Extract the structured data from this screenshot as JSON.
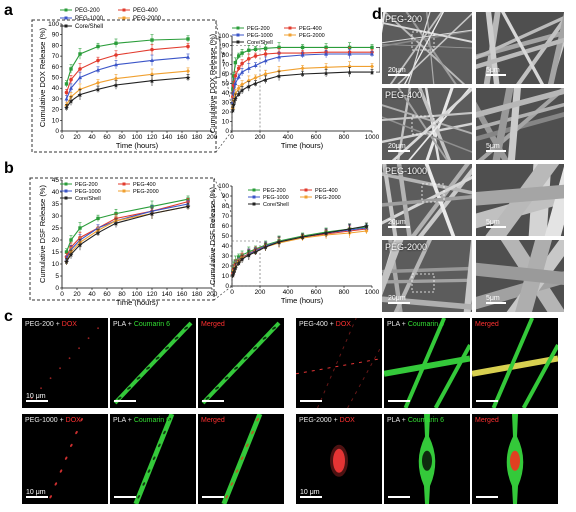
{
  "panels": {
    "a": "a",
    "b": "b",
    "c": "c",
    "d": "d"
  },
  "colors": {
    "PEG-200": "#2a9d3a",
    "PEG-400": "#e23b2e",
    "PEG-1000": "#3b55c8",
    "PEG-2000": "#f0a030",
    "Core/Shell": "#222222"
  },
  "chart_data": [
    {
      "id": "a-inset",
      "type": "line",
      "xlabel": "Time (hours)",
      "ylabel": "Cumulative DOX Release (%)",
      "xlim": [
        0,
        200
      ],
      "ylim": [
        0,
        100
      ],
      "xticks": [
        "0",
        "20",
        "40",
        "60",
        "80",
        "100",
        "120",
        "140",
        "160",
        "180",
        "200"
      ],
      "yticks": [
        "0",
        "10",
        "20",
        "30",
        "40",
        "50",
        "60",
        "70",
        "80",
        "90",
        "100"
      ],
      "significance": [
        "*",
        "*"
      ],
      "x": [
        6,
        12,
        24,
        48,
        72,
        120,
        168
      ],
      "series": [
        {
          "name": "PEG-200",
          "values": [
            44,
            58,
            72,
            79,
            82,
            85,
            86
          ]
        },
        {
          "name": "PEG-400",
          "values": [
            36,
            48,
            58,
            66,
            71,
            76,
            79
          ]
        },
        {
          "name": "PEG-1000",
          "values": [
            30,
            40,
            50,
            57,
            62,
            66,
            69
          ]
        },
        {
          "name": "PEG-2000",
          "values": [
            24,
            32,
            39,
            45,
            49,
            53,
            56
          ]
        },
        {
          "name": "Core/Shell",
          "values": [
            22,
            28,
            34,
            39,
            43,
            47,
            50
          ]
        }
      ]
    },
    {
      "id": "a-full",
      "type": "line",
      "xlabel": "Time (hours)",
      "ylabel": "Cumulative DOX Release (%)",
      "xlim": [
        0,
        1000
      ],
      "ylim": [
        0,
        100
      ],
      "xticks": [
        "0",
        "200",
        "400",
        "600",
        "800",
        "1000"
      ],
      "yticks": [
        "0",
        "10",
        "20",
        "30",
        "40",
        "50",
        "60",
        "70",
        "80",
        "90",
        "100"
      ],
      "significance": [
        "*",
        "*"
      ],
      "x": [
        6,
        12,
        24,
        48,
        72,
        120,
        168,
        240,
        336,
        504,
        672,
        840,
        1000
      ],
      "series": [
        {
          "name": "PEG-200",
          "values": [
            44,
            58,
            72,
            79,
            82,
            85,
            86,
            87,
            88,
            88,
            88,
            88,
            88
          ]
        },
        {
          "name": "PEG-400",
          "values": [
            36,
            48,
            58,
            66,
            71,
            76,
            79,
            81,
            82,
            82,
            83,
            83,
            83
          ]
        },
        {
          "name": "PEG-1000",
          "values": [
            30,
            40,
            50,
            57,
            62,
            66,
            69,
            74,
            78,
            80,
            81,
            81,
            81
          ]
        },
        {
          "name": "PEG-2000",
          "values": [
            24,
            32,
            39,
            45,
            49,
            53,
            56,
            60,
            63,
            66,
            67,
            68,
            68
          ]
        },
        {
          "name": "Core/Shell",
          "values": [
            22,
            28,
            34,
            39,
            43,
            47,
            50,
            54,
            58,
            60,
            61,
            62,
            62
          ]
        }
      ]
    },
    {
      "id": "b-inset",
      "type": "line",
      "xlabel": "Time (hours)",
      "ylabel": "Cumulative DSF Release (%)",
      "xlim": [
        0,
        200
      ],
      "ylim": [
        0,
        45
      ],
      "xticks": [
        "0",
        "20",
        "40",
        "60",
        "80",
        "100",
        "120",
        "140",
        "160",
        "180",
        "200"
      ],
      "yticks": [
        "0",
        "5",
        "10",
        "15",
        "20",
        "25",
        "30",
        "35",
        "40",
        "45"
      ],
      "x": [
        6,
        12,
        24,
        48,
        72,
        120,
        168
      ],
      "series": [
        {
          "name": "PEG-200",
          "values": [
            15,
            20,
            25,
            29,
            31,
            34,
            37
          ]
        },
        {
          "name": "PEG-400",
          "values": [
            13,
            17,
            21,
            25,
            29,
            32,
            36
          ]
        },
        {
          "name": "PEG-1000",
          "values": [
            12,
            16,
            20,
            25,
            28,
            32,
            35
          ]
        },
        {
          "name": "PEG-2000",
          "values": [
            11,
            15,
            19,
            24,
            28,
            31,
            34
          ]
        },
        {
          "name": "Core/Shell",
          "values": [
            11,
            14,
            18,
            23,
            27,
            31,
            34
          ]
        }
      ]
    },
    {
      "id": "b-full",
      "type": "line",
      "xlabel": "Time (hours)",
      "ylabel": "Cumulative DSF Release (%)",
      "xlim": [
        0,
        1000
      ],
      "ylim": [
        0,
        100
      ],
      "xticks": [
        "0",
        "200",
        "400",
        "600",
        "800",
        "1000"
      ],
      "yticks": [
        "0",
        "10",
        "20",
        "30",
        "40",
        "50",
        "60",
        "70",
        "80",
        "90",
        "100"
      ],
      "x": [
        6,
        12,
        24,
        48,
        72,
        120,
        168,
        240,
        336,
        504,
        672,
        840,
        960
      ],
      "series": [
        {
          "name": "PEG-200",
          "values": [
            15,
            20,
            25,
            29,
            31,
            34,
            37,
            41,
            45,
            50,
            54,
            57,
            59
          ]
        },
        {
          "name": "PEG-400",
          "values": [
            13,
            17,
            21,
            25,
            29,
            32,
            36,
            40,
            44,
            49,
            52,
            55,
            57
          ]
        },
        {
          "name": "PEG-1000",
          "values": [
            12,
            16,
            20,
            25,
            28,
            32,
            35,
            40,
            44,
            49,
            53,
            56,
            58
          ]
        },
        {
          "name": "PEG-2000",
          "values": [
            11,
            15,
            19,
            24,
            28,
            31,
            34,
            39,
            43,
            48,
            51,
            53,
            55
          ]
        },
        {
          "name": "Core/Shell",
          "values": [
            11,
            14,
            18,
            23,
            27,
            31,
            34,
            39,
            44,
            49,
            53,
            57,
            60
          ]
        }
      ]
    }
  ],
  "sem": {
    "rows": [
      {
        "label": "PEG-200",
        "scale_left": "20μm",
        "scale_right": "5μm"
      },
      {
        "label": "PEG-400",
        "scale_left": "20μm",
        "scale_right": "5μm"
      },
      {
        "label": "PEG-1000",
        "scale_left": "20μm",
        "scale_right": "5μm"
      },
      {
        "label": "PEG-2000",
        "scale_left": "20μm",
        "scale_right": "5μm"
      }
    ]
  },
  "fluor": {
    "tiles": [
      {
        "peg": "PEG-200",
        "plus": " + ",
        "drug": "DOX",
        "pla": "PLA + ",
        "dye": "Coumarin 6",
        "merged": "Merged",
        "scale": "10 μm"
      },
      {
        "peg": "PEG-400",
        "plus": " + ",
        "drug": "DOX",
        "pla": "PLA + ",
        "dye": "Coumarin 6",
        "merged": "Merged",
        "scale": ""
      },
      {
        "peg": "PEG-1000",
        "plus": " + ",
        "drug": "DOX",
        "pla": "PLA + ",
        "dye": "Coumarin 6",
        "merged": "Merged",
        "scale": "10 μm"
      },
      {
        "peg": "PEG-2000",
        "plus": " + ",
        "drug": "DOX",
        "pla": "PLA + ",
        "dye": "Coumarin 6",
        "merged": "Merged",
        "scale": "10 μm"
      }
    ]
  }
}
